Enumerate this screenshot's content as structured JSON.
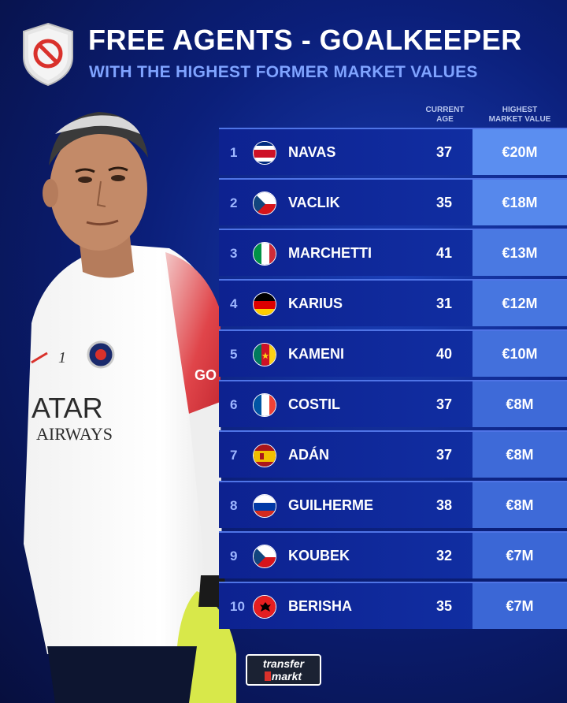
{
  "header": {
    "title": "FREE AGENTS - GOALKEEPER",
    "subtitle": "WITH THE HIGHEST FORMER MARKET VALUES",
    "badge_icon": "no-entry-icon"
  },
  "columns": {
    "age_line1": "CURRENT",
    "age_line2": "AGE",
    "value_line1": "HIGHEST",
    "value_line2": "MARKET VALUE"
  },
  "rows": [
    {
      "rank": "1",
      "name": "NAVAS",
      "age": "37",
      "value": "€20M",
      "flag": "costa-rica",
      "value_fraction": 1.0
    },
    {
      "rank": "2",
      "name": "VACLIK",
      "age": "35",
      "value": "€18M",
      "flag": "czech-republic",
      "value_fraction": 0.9
    },
    {
      "rank": "3",
      "name": "MARCHETTI",
      "age": "41",
      "value": "€13M",
      "flag": "italy",
      "value_fraction": 0.65
    },
    {
      "rank": "4",
      "name": "KARIUS",
      "age": "31",
      "value": "€12M",
      "flag": "germany",
      "value_fraction": 0.6
    },
    {
      "rank": "5",
      "name": "KAMENI",
      "age": "40",
      "value": "€10M",
      "flag": "cameroon",
      "value_fraction": 0.5
    },
    {
      "rank": "6",
      "name": "COSTIL",
      "age": "37",
      "value": "€8M",
      "flag": "france",
      "value_fraction": 0.4
    },
    {
      "rank": "7",
      "name": "ADÁN",
      "age": "37",
      "value": "€8M",
      "flag": "spain",
      "value_fraction": 0.4
    },
    {
      "rank": "8",
      "name": "GUILHERME",
      "age": "38",
      "value": "€8M",
      "flag": "russia",
      "value_fraction": 0.4
    },
    {
      "rank": "9",
      "name": "KOUBEK",
      "age": "32",
      "value": "€7M",
      "flag": "czech-republic",
      "value_fraction": 0.35
    },
    {
      "rank": "10",
      "name": "BERISHA",
      "age": "35",
      "value": "€7M",
      "flag": "albania",
      "value_fraction": 0.35
    }
  ],
  "player_shirt": {
    "sponsor_line1": "ATAR",
    "sponsor_line2": "AIRWAYS",
    "number": "1",
    "sleeve_text": "GO"
  },
  "logo": {
    "line1": "transfer",
    "line2": "markt"
  },
  "colors": {
    "accent_light": "#7fa3ff",
    "value_high": "#5b8ef0",
    "value_low": "#2a52c8"
  }
}
